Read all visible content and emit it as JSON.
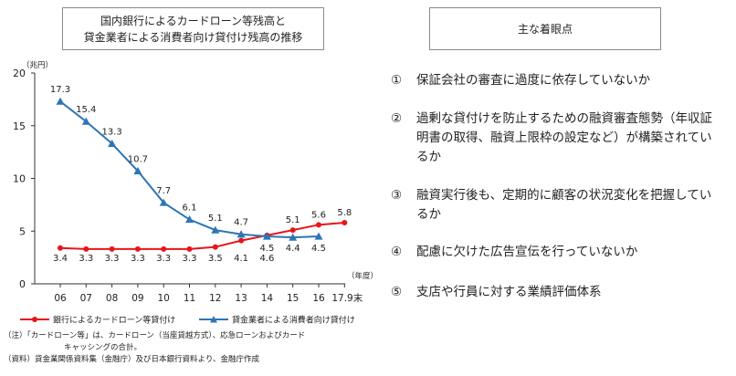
{
  "chart_title_line1": "国内銀行によるカードローン等残高と",
  "chart_title_line2": "貸金業者による消費者向け貸付け残高の推移",
  "points_title": "主な着眼点",
  "points": [
    {
      "num": "①",
      "text": "保証会社の審査に過度に依存していないか"
    },
    {
      "num": "②",
      "text": "過剰な貸付けを防止するための融資審査態勢（年収証明書の取得、融資上限枠の設定など）が構築されているか"
    },
    {
      "num": "③",
      "text": "融資実行後も、定期的に顧客の状況変化を把握しているか"
    },
    {
      "num": "④",
      "text": "配慮に欠けた広告宣伝を行っていないか"
    },
    {
      "num": "⑤",
      "text": "支店や行員に対する業績評価体系"
    }
  ],
  "notes": {
    "line1": "（注）「カードローン等」は、カードローン（当座貸越方式）、応急ローンおよびカード",
    "line2": "キャッシングの合計。",
    "line3": "（資料）貸金業関係資料集（金融庁）及び日本銀行資料より、金融庁作成"
  },
  "chart_data": {
    "type": "line",
    "categories": [
      "06",
      "07",
      "08",
      "09",
      "10",
      "11",
      "12",
      "13",
      "14",
      "15",
      "16",
      "17.9末"
    ],
    "ylabel": "（兆円）",
    "xlabel": "（年度）",
    "ylim": [
      0,
      20
    ],
    "yticks": [
      0,
      5,
      10,
      15,
      20
    ],
    "grid": false,
    "legend_position": "bottom",
    "series": [
      {
        "name": "銀行によるカードローン等貸付け",
        "color": "#e8141b",
        "marker": "circle",
        "values": [
          3.4,
          3.3,
          3.3,
          3.3,
          3.3,
          3.3,
          3.5,
          4.1,
          4.6,
          5.1,
          5.6,
          5.8
        ],
        "labels": [
          "3.4",
          "3.3",
          "3.3",
          "3.3",
          "3.3",
          "3.3",
          "3.5",
          "4.1",
          "4.6",
          "5.1",
          "5.6",
          "5.8"
        ]
      },
      {
        "name": "貸金業者による消費者向け貸付け",
        "color": "#2e75b6",
        "marker": "triangle",
        "values": [
          17.3,
          15.4,
          13.3,
          10.7,
          7.7,
          6.1,
          5.1,
          4.7,
          4.5,
          4.4,
          4.5,
          null
        ],
        "labels": [
          "17.3",
          "15.4",
          "13.3",
          "10.7",
          "7.7",
          "6.1",
          "5.1",
          "4.7",
          "4.5",
          "4.4",
          "4.5",
          ""
        ]
      }
    ]
  }
}
